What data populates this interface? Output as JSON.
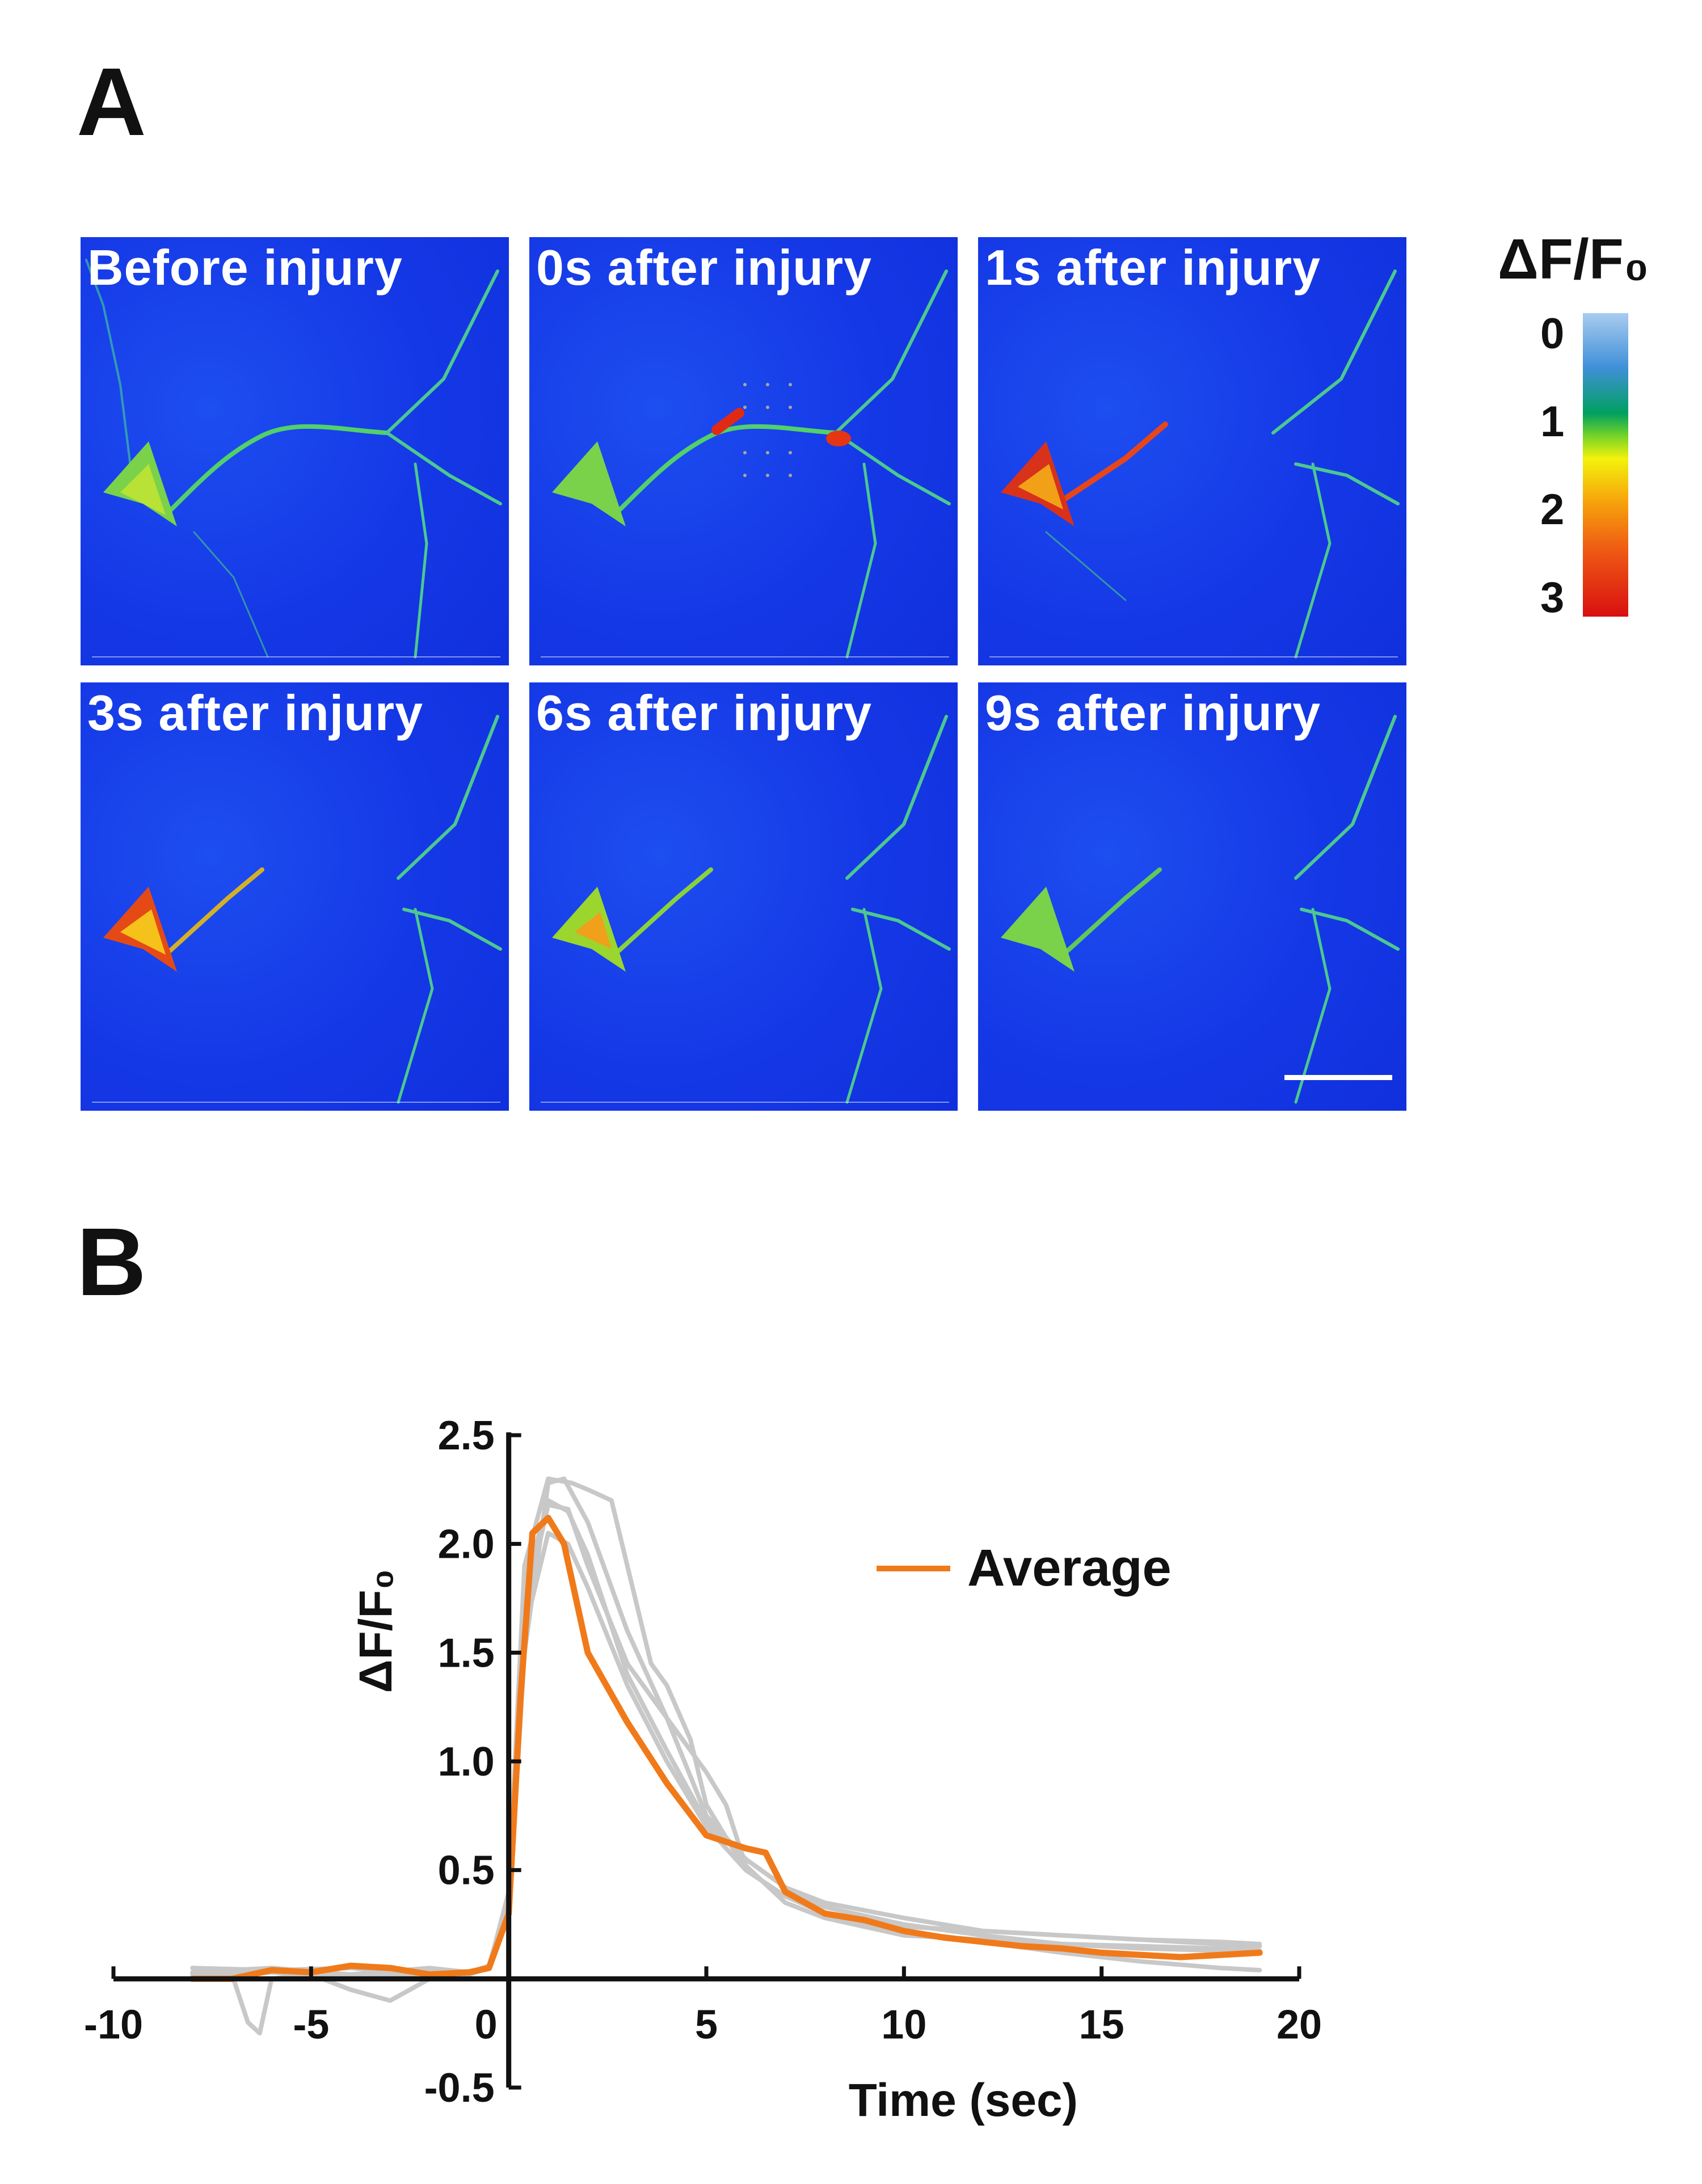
{
  "panels": {
    "a": "A",
    "b": "B"
  },
  "micrographs": [
    {
      "label": "Before injury"
    },
    {
      "label": "0s after injury"
    },
    {
      "label": "1s after injury"
    },
    {
      "label": "3s after injury"
    },
    {
      "label": "6s after injury"
    },
    {
      "label": "9s after injury"
    }
  ],
  "colorbar": {
    "title": "ΔF/F₀",
    "ticks": [
      "0",
      "1",
      "2",
      "3"
    ],
    "colors": [
      "#a9cbef",
      "#3f90d8",
      "#00a060",
      "#f4f20c",
      "#ef5a14",
      "#d80f10"
    ]
  },
  "chart_data": {
    "type": "line",
    "xlabel": "Time (sec)",
    "ylabel": "ΔF/F₀",
    "xlim": [
      -10,
      20
    ],
    "ylim": [
      -0.5,
      2.5
    ],
    "x_ticks": [
      "-10",
      "-5",
      "0",
      "5",
      "10",
      "15",
      "20"
    ],
    "y_ticks": [
      "-0.5",
      "0",
      "0.5",
      "1.0",
      "1.5",
      "2.0",
      "2.5"
    ],
    "legend_position": "top-right",
    "colors": {
      "average": "#f07a1a",
      "trial": "#c8c8c8"
    },
    "series": [
      {
        "name": "Average",
        "x": [
          -8,
          -7,
          -6,
          -5,
          -4,
          -3,
          -2,
          -1,
          -0.5,
          0,
          0.3,
          0.6,
          1,
          1.4,
          2,
          3,
          4,
          5,
          6,
          6.5,
          7,
          8,
          9,
          10,
          11,
          12,
          13,
          14,
          15,
          16,
          17,
          18,
          19
        ],
        "y": [
          0,
          0,
          0.04,
          0.03,
          0.06,
          0.05,
          0.02,
          0.03,
          0.05,
          0.3,
          1.3,
          2.05,
          2.12,
          2.0,
          1.5,
          1.18,
          0.9,
          0.66,
          0.6,
          0.58,
          0.4,
          0.3,
          0.27,
          0.22,
          0.19,
          0.17,
          0.15,
          0.14,
          0.12,
          0.11,
          0.1,
          0.11,
          0.12
        ]
      },
      {
        "x": [
          -8,
          -7,
          -6.6,
          -6.3,
          -6,
          -5,
          -4,
          -3,
          -2,
          -1,
          -0.5,
          0,
          0.4,
          1,
          1.4,
          2,
          3,
          4,
          5,
          6,
          7,
          8,
          10,
          12,
          14,
          16,
          18,
          19
        ],
        "y": [
          0.05,
          0.02,
          -0.2,
          -0.25,
          0,
          0.02,
          -0.05,
          -0.1,
          0.0,
          0.02,
          0.05,
          0.3,
          1.5,
          2.28,
          2.3,
          2.1,
          1.6,
          1.2,
          0.75,
          0.55,
          0.42,
          0.33,
          0.25,
          0.2,
          0.16,
          0.14,
          0.13,
          0.12
        ]
      },
      {
        "x": [
          -8,
          -6,
          -4,
          -2,
          -1,
          -0.5,
          0,
          0.4,
          1,
          1.6,
          2,
          2.6,
          3,
          3.6,
          4,
          4.6,
          5,
          6,
          7,
          8,
          10,
          12,
          14,
          16,
          18,
          19
        ],
        "y": [
          0.0,
          0.03,
          0.0,
          0.02,
          0.03,
          0.05,
          0.4,
          1.9,
          2.3,
          2.28,
          2.25,
          2.2,
          1.9,
          1.45,
          1.35,
          1.1,
          0.8,
          0.5,
          0.38,
          0.3,
          0.24,
          0.22,
          0.2,
          0.18,
          0.16,
          0.15
        ]
      },
      {
        "x": [
          -8,
          -6,
          -4,
          -2,
          -1,
          -0.5,
          0,
          0.4,
          1,
          1.5,
          2,
          3,
          4,
          5,
          5.5,
          6,
          7,
          8,
          10,
          12,
          14,
          16,
          18,
          19
        ],
        "y": [
          0.03,
          0.05,
          0.02,
          0.04,
          0.03,
          0.05,
          0.35,
          1.7,
          2.18,
          2.16,
          1.9,
          1.45,
          1.2,
          0.95,
          0.8,
          0.52,
          0.35,
          0.28,
          0.2,
          0.18,
          0.16,
          0.15,
          0.14,
          0.13
        ]
      },
      {
        "x": [
          -8,
          -6,
          -4,
          -2,
          -1,
          -0.5,
          0,
          0.4,
          1,
          1.5,
          2,
          3,
          4,
          5,
          6,
          7,
          8,
          10,
          12,
          14,
          16,
          18,
          19
        ],
        "y": [
          0.02,
          0.04,
          0.05,
          0.02,
          0.03,
          0.05,
          0.32,
          1.6,
          2.05,
          2.0,
          1.8,
          1.35,
          1.0,
          0.7,
          0.5,
          0.38,
          0.3,
          0.22,
          0.17,
          0.12,
          0.08,
          0.05,
          0.04
        ]
      },
      {
        "x": [
          -8,
          -6,
          -4,
          -2,
          -1,
          -0.5,
          0,
          0.4,
          1,
          1.5,
          2,
          3,
          4,
          5,
          6,
          7,
          8,
          10,
          12,
          14,
          16,
          18,
          19
        ],
        "y": [
          0.05,
          0.04,
          0.02,
          0.05,
          0.03,
          0.06,
          0.38,
          1.8,
          2.2,
          2.15,
          1.95,
          1.4,
          1.05,
          0.72,
          0.55,
          0.42,
          0.35,
          0.28,
          0.22,
          0.2,
          0.18,
          0.17,
          0.16
        ]
      }
    ]
  }
}
